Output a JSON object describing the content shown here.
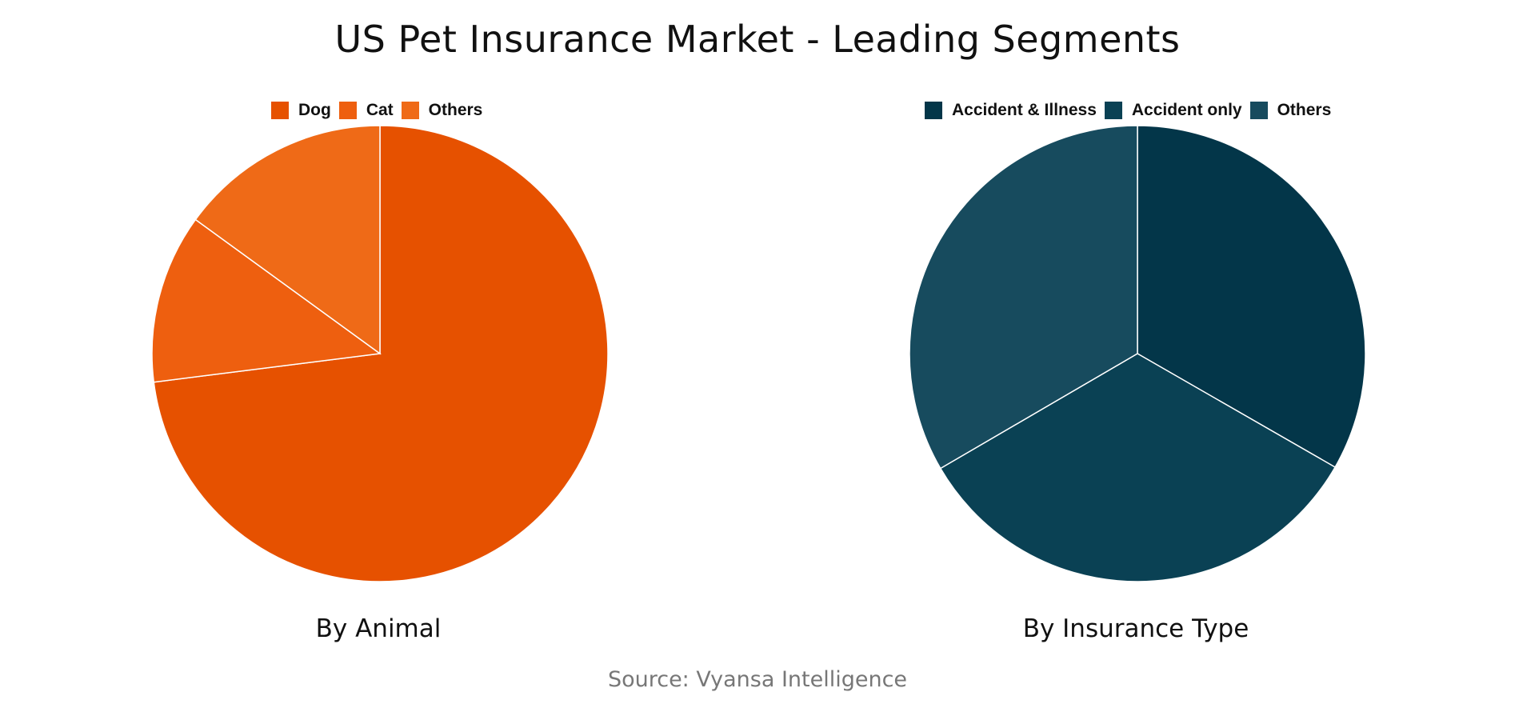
{
  "title": "US Pet Insurance Market - Leading Segments",
  "source": "Source: Vyansa Intelligence",
  "chart_data": [
    {
      "type": "pie",
      "title": "By Animal",
      "legend_position": "top",
      "categories": [
        "Dog",
        "Cat",
        "Others"
      ],
      "values": [
        73,
        12,
        15
      ],
      "colors": [
        "#E65100",
        "#EE5F0F",
        "#EF6A17"
      ]
    },
    {
      "type": "pie",
      "title": "By Insurance Type",
      "legend_position": "top",
      "categories": [
        "Accident & Illness",
        "Accident only",
        "Others"
      ],
      "values": [
        33.3,
        33.3,
        33.4
      ],
      "colors": [
        "#033649",
        "#0A4154",
        "#174B5E"
      ]
    }
  ]
}
